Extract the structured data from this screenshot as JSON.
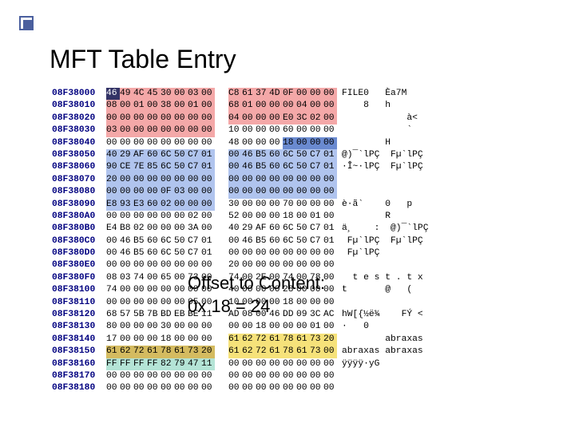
{
  "title": "MFT Table Entry",
  "overlay_l1": "Offset to Content:",
  "overlay_l2": "0x 18 = 24",
  "colors": {
    "addr": "#000080",
    "hl_red": "#f4a8a8",
    "hl_grn": "#b4e4d6",
    "hl_b1": "#b0c4ee",
    "hl_b2": "#6a8ad0",
    "hl_yel": "#f6e27a",
    "hl_gold": "#d4bb60",
    "hl_inv": "#333366"
  },
  "rows": [
    {
      "addr": "08F38000",
      "bytes": [
        "46",
        "49",
        "4C",
        "45",
        "30",
        "00",
        "03",
        "00",
        "C8",
        "61",
        "37",
        "4D",
        "0F",
        "00",
        "00",
        "00"
      ],
      "hl": [
        "inv",
        "red",
        "red",
        "red",
        "red",
        "red",
        "red",
        "red",
        "red",
        "red",
        "red",
        "red",
        "red",
        "red",
        "red",
        "red"
      ],
      "asc": "FILE0   Èa7M"
    },
    {
      "addr": "08F38010",
      "bytes": [
        "08",
        "00",
        "01",
        "00",
        "38",
        "00",
        "01",
        "00",
        "68",
        "01",
        "00",
        "00",
        "00",
        "04",
        "00",
        "00"
      ],
      "hl": [
        "red",
        "red",
        "red",
        "red",
        "red",
        "red",
        "red",
        "red",
        "red",
        "red",
        "red",
        "red",
        "red",
        "red",
        "red",
        "red"
      ],
      "asc": "    8   h"
    },
    {
      "addr": "08F38020",
      "bytes": [
        "00",
        "00",
        "00",
        "00",
        "00",
        "00",
        "00",
        "00",
        "04",
        "00",
        "00",
        "00",
        "E0",
        "3C",
        "02",
        "00"
      ],
      "hl": [
        "red",
        "red",
        "red",
        "red",
        "red",
        "red",
        "red",
        "red",
        "red",
        "red",
        "red",
        "red",
        "red",
        "red",
        "red",
        "red"
      ],
      "asc": "            à<"
    },
    {
      "addr": "08F38030",
      "bytes": [
        "03",
        "00",
        "00",
        "00",
        "00",
        "00",
        "00",
        "00",
        "10",
        "00",
        "00",
        "00",
        "60",
        "00",
        "00",
        "00"
      ],
      "hl": [
        "red",
        "red",
        "red",
        "red",
        "red",
        "red",
        "red",
        "red",
        "",
        "",
        "",
        "",
        "",
        "",
        "",
        ""
      ],
      "asc": "            `"
    },
    {
      "addr": "08F38040",
      "bytes": [
        "00",
        "00",
        "00",
        "00",
        "00",
        "00",
        "00",
        "00",
        "48",
        "00",
        "00",
        "00",
        "18",
        "00",
        "00",
        "00"
      ],
      "hl": [
        "",
        "",
        "",
        "",
        "",
        "",
        "",
        "",
        "",
        "",
        "",
        "",
        "b2",
        "b2",
        "b2",
        "b2"
      ],
      "asc": "        H"
    },
    {
      "addr": "08F38050",
      "bytes": [
        "40",
        "29",
        "AF",
        "60",
        "6C",
        "50",
        "C7",
        "01",
        "00",
        "46",
        "B5",
        "60",
        "6C",
        "50",
        "C7",
        "01"
      ],
      "hl": [
        "b1",
        "b1",
        "b1",
        "b1",
        "b1",
        "b1",
        "b1",
        "b1",
        "b1",
        "b1",
        "b1",
        "b1",
        "b1",
        "b1",
        "b1",
        "b1"
      ],
      "asc": "@)¯`lPÇ  Fµ`lPÇ"
    },
    {
      "addr": "08F38060",
      "bytes": [
        "90",
        "CE",
        "7E",
        "85",
        "6C",
        "50",
        "C7",
        "01",
        "00",
        "46",
        "B5",
        "60",
        "6C",
        "50",
        "C7",
        "01"
      ],
      "hl": [
        "b1",
        "b1",
        "b1",
        "b1",
        "b1",
        "b1",
        "b1",
        "b1",
        "b1",
        "b1",
        "b1",
        "b1",
        "b1",
        "b1",
        "b1",
        "b1"
      ],
      "asc": "·Î~·lPÇ  Fµ`lPÇ"
    },
    {
      "addr": "08F38070",
      "bytes": [
        "20",
        "00",
        "00",
        "00",
        "00",
        "00",
        "00",
        "00",
        "00",
        "00",
        "00",
        "00",
        "00",
        "00",
        "00",
        "00"
      ],
      "hl": [
        "b1",
        "b1",
        "b1",
        "b1",
        "b1",
        "b1",
        "b1",
        "b1",
        "b1",
        "b1",
        "b1",
        "b1",
        "b1",
        "b1",
        "b1",
        "b1"
      ],
      "asc": ""
    },
    {
      "addr": "08F38080",
      "bytes": [
        "00",
        "00",
        "00",
        "00",
        "0F",
        "03",
        "00",
        "00",
        "00",
        "00",
        "00",
        "00",
        "00",
        "00",
        "00",
        "00"
      ],
      "hl": [
        "b1",
        "b1",
        "b1",
        "b1",
        "b1",
        "b1",
        "b1",
        "b1",
        "b1",
        "b1",
        "b1",
        "b1",
        "b1",
        "b1",
        "b1",
        "b1"
      ],
      "asc": ""
    },
    {
      "addr": "08F38090",
      "bytes": [
        "E8",
        "93",
        "E3",
        "60",
        "02",
        "00",
        "00",
        "00",
        "30",
        "00",
        "00",
        "00",
        "70",
        "00",
        "00",
        "00"
      ],
      "hl": [
        "b1",
        "b1",
        "b1",
        "b1",
        "b1",
        "b1",
        "b1",
        "b1",
        "",
        "",
        "",
        "",
        "",
        "",
        "",
        ""
      ],
      "asc": "è·ã`    0   p"
    },
    {
      "addr": "08F380A0",
      "bytes": [
        "00",
        "00",
        "00",
        "00",
        "00",
        "00",
        "02",
        "00",
        "52",
        "00",
        "00",
        "00",
        "18",
        "00",
        "01",
        "00"
      ],
      "hl": [
        "",
        "",
        "",
        "",
        "",
        "",
        "",
        "",
        "",
        "",
        "",
        "",
        "",
        "",
        "",
        ""
      ],
      "asc": "        R"
    },
    {
      "addr": "08F380B0",
      "bytes": [
        "E4",
        "B8",
        "02",
        "00",
        "00",
        "00",
        "3A",
        "00",
        "40",
        "29",
        "AF",
        "60",
        "6C",
        "50",
        "C7",
        "01"
      ],
      "hl": [
        "",
        "",
        "",
        "",
        "",
        "",
        "",
        "",
        "",
        "",
        "",
        "",
        "",
        "",
        "",
        ""
      ],
      "asc": "ä¸    :  @)¯`lPÇ"
    },
    {
      "addr": "08F380C0",
      "bytes": [
        "00",
        "46",
        "B5",
        "60",
        "6C",
        "50",
        "C7",
        "01",
        "00",
        "46",
        "B5",
        "60",
        "6C",
        "50",
        "C7",
        "01"
      ],
      "hl": [
        "",
        "",
        "",
        "",
        "",
        "",
        "",
        "",
        "",
        "",
        "",
        "",
        "",
        "",
        "",
        ""
      ],
      "asc": " Fµ`lPÇ  Fµ`lPÇ"
    },
    {
      "addr": "08F380D0",
      "bytes": [
        "00",
        "46",
        "B5",
        "60",
        "6C",
        "50",
        "C7",
        "01",
        "00",
        "00",
        "00",
        "00",
        "00",
        "00",
        "00",
        "00"
      ],
      "hl": [
        "",
        "",
        "",
        "",
        "",
        "",
        "",
        "",
        "",
        "",
        "",
        "",
        "",
        "",
        "",
        ""
      ],
      "asc": " Fµ`lPÇ"
    },
    {
      "addr": "08F380E0",
      "bytes": [
        "00",
        "00",
        "00",
        "00",
        "00",
        "00",
        "00",
        "00",
        "20",
        "00",
        "00",
        "00",
        "00",
        "00",
        "00",
        "00"
      ],
      "hl": [
        "",
        "",
        "",
        "",
        "",
        "",
        "",
        "",
        "",
        "",
        "",
        "",
        "",
        "",
        "",
        ""
      ],
      "asc": ""
    },
    {
      "addr": "08F380F0",
      "bytes": [
        "08",
        "03",
        "74",
        "00",
        "65",
        "00",
        "73",
        "00",
        "74",
        "00",
        "2E",
        "00",
        "74",
        "00",
        "78",
        "00"
      ],
      "hl": [
        "",
        "",
        "",
        "",
        "",
        "",
        "",
        "",
        "",
        "",
        "",
        "",
        "",
        "",
        "",
        ""
      ],
      "asc": "  t e s t . t x"
    },
    {
      "addr": "08F38100",
      "bytes": [
        "74",
        "00",
        "00",
        "00",
        "00",
        "00",
        "00",
        "00",
        "40",
        "00",
        "00",
        "00",
        "28",
        "00",
        "00",
        "00"
      ],
      "hl": [
        "",
        "",
        "",
        "",
        "",
        "",
        "",
        "",
        "",
        "",
        "",
        "",
        "",
        "",
        "",
        ""
      ],
      "asc": "t       @   ("
    },
    {
      "addr": "08F38110",
      "bytes": [
        "00",
        "00",
        "00",
        "00",
        "00",
        "00",
        "05",
        "00",
        "10",
        "00",
        "00",
        "00",
        "18",
        "00",
        "00",
        "00"
      ],
      "hl": [
        "",
        "",
        "",
        "",
        "",
        "",
        "",
        "",
        "",
        "",
        "",
        "",
        "",
        "",
        "",
        ""
      ],
      "asc": ""
    },
    {
      "addr": "08F38120",
      "bytes": [
        "68",
        "57",
        "5B",
        "7B",
        "BD",
        "EB",
        "BE",
        "11",
        "AD",
        "08",
        "00",
        "46",
        "DD",
        "09",
        "3C",
        "AC"
      ],
      "hl": [
        "",
        "",
        "",
        "",
        "",
        "",
        "",
        "",
        "",
        "",
        "",
        "",
        "",
        "",
        "",
        ""
      ],
      "asc": "hW[{½ë¾  ­  FÝ <"
    },
    {
      "addr": "08F38130",
      "bytes": [
        "80",
        "00",
        "00",
        "00",
        "30",
        "00",
        "00",
        "00",
        "00",
        "00",
        "18",
        "00",
        "00",
        "00",
        "01",
        "00"
      ],
      "hl": [
        "",
        "",
        "",
        "",
        "",
        "",
        "",
        "",
        "",
        "",
        "",
        "",
        "",
        "",
        "",
        ""
      ],
      "asc": "·   0"
    },
    {
      "addr": "08F38140",
      "bytes": [
        "17",
        "00",
        "00",
        "00",
        "18",
        "00",
        "00",
        "00",
        "61",
        "62",
        "72",
        "61",
        "78",
        "61",
        "73",
        "20"
      ],
      "hl": [
        "",
        "",
        "",
        "",
        "",
        "",
        "",
        "",
        "yel",
        "yel",
        "yel",
        "yel",
        "yel",
        "yel",
        "yel",
        "yel"
      ],
      "asc": "        abraxas"
    },
    {
      "addr": "08F38150",
      "bytes": [
        "61",
        "62",
        "72",
        "61",
        "78",
        "61",
        "73",
        "20",
        "61",
        "62",
        "72",
        "61",
        "78",
        "61",
        "73",
        "00"
      ],
      "hl": [
        "gold",
        "gold",
        "gold",
        "gold",
        "gold",
        "gold",
        "gold",
        "gold",
        "yel",
        "yel",
        "yel",
        "yel",
        "yel",
        "yel",
        "yel",
        "yel"
      ],
      "asc": "abraxas abraxas"
    },
    {
      "addr": "08F38160",
      "bytes": [
        "FF",
        "FF",
        "FF",
        "FF",
        "82",
        "79",
        "47",
        "11",
        "00",
        "00",
        "00",
        "00",
        "00",
        "00",
        "00",
        "00"
      ],
      "hl": [
        "grn",
        "grn",
        "grn",
        "grn",
        "grn",
        "grn",
        "grn",
        "grn",
        "",
        "",
        "",
        "",
        "",
        "",
        "",
        ""
      ],
      "asc": "ÿÿÿÿ·yG"
    },
    {
      "addr": "08F38170",
      "bytes": [
        "00",
        "00",
        "00",
        "00",
        "00",
        "00",
        "00",
        "00",
        "00",
        "00",
        "00",
        "00",
        "00",
        "00",
        "00",
        "00"
      ],
      "hl": [
        "",
        "",
        "",
        "",
        "",
        "",
        "",
        "",
        "",
        "",
        "",
        "",
        "",
        "",
        "",
        ""
      ],
      "asc": ""
    },
    {
      "addr": "08F38180",
      "bytes": [
        "00",
        "00",
        "00",
        "00",
        "00",
        "00",
        "00",
        "00",
        "00",
        "00",
        "00",
        "00",
        "00",
        "00",
        "00",
        "00"
      ],
      "hl": [
        "",
        "",
        "",
        "",
        "",
        "",
        "",
        "",
        "",
        "",
        "",
        "",
        "",
        "",
        "",
        ""
      ],
      "asc": ""
    }
  ]
}
